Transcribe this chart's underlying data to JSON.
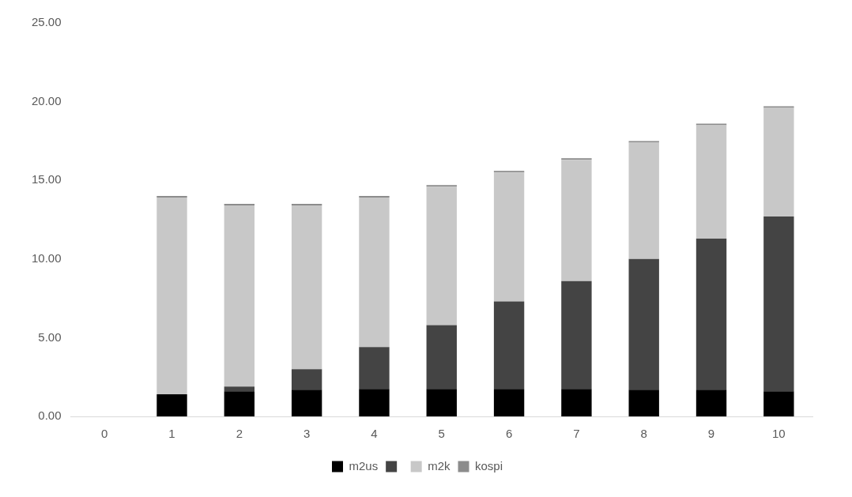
{
  "chart_data": {
    "type": "bar",
    "stacked": true,
    "categories": [
      "0",
      "1",
      "2",
      "3",
      "4",
      "5",
      "6",
      "7",
      "8",
      "9",
      "10"
    ],
    "series": [
      {
        "name": "m2us",
        "color": "#000000",
        "values": [
          null,
          1.4,
          1.6,
          1.7,
          1.75,
          1.75,
          1.75,
          1.75,
          1.7,
          1.7,
          1.6
        ]
      },
      {
        "color": "#444444",
        "values": [
          null,
          0,
          0.3,
          1.3,
          2.65,
          4.05,
          5.55,
          6.85,
          8.3,
          9.6,
          11.1
        ]
      },
      {
        "name": "m2k",
        "color": "#c8c8c8",
        "values": [
          null,
          12.5,
          11.5,
          10.4,
          9.5,
          8.8,
          8.2,
          7.7,
          7.4,
          7.2,
          6.9
        ]
      },
      {
        "name": "kospi",
        "color": "#8c8c8c",
        "values": [
          null,
          0.1,
          0.1,
          0.1,
          0.1,
          0.1,
          0.1,
          0.1,
          0.1,
          0.1,
          0.1
        ]
      }
    ],
    "ylim": [
      0,
      25
    ],
    "yticks": [
      {
        "value": 0,
        "label": "0.00"
      },
      {
        "value": 5,
        "label": "5.00"
      },
      {
        "value": 10,
        "label": "10.00"
      },
      {
        "value": 15,
        "label": "15.00"
      },
      {
        "value": 20,
        "label": "20.00"
      },
      {
        "value": 25,
        "label": "25.00"
      }
    ],
    "legend": "bottom"
  }
}
